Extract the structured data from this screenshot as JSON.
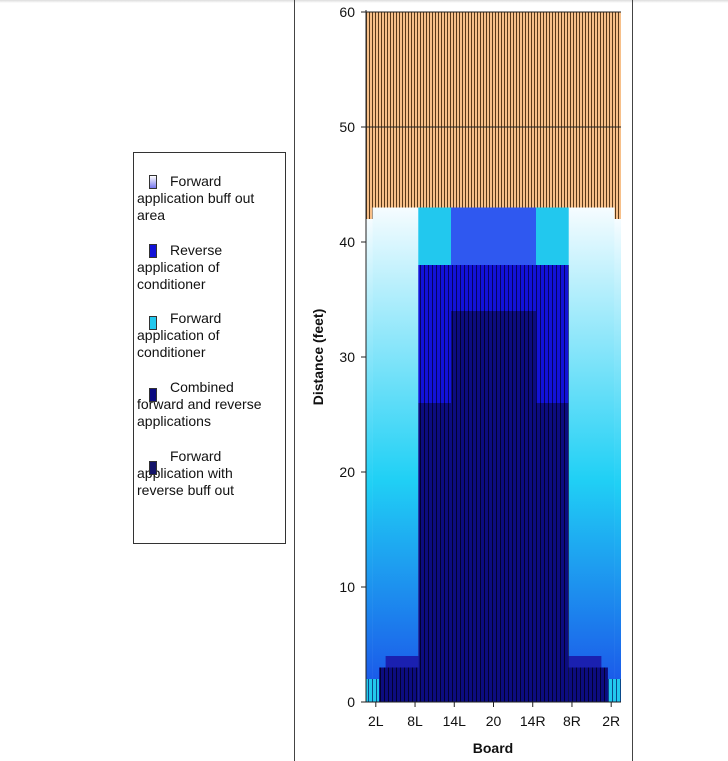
{
  "chart_data": {
    "type": "area",
    "xlabel": "Board",
    "ylabel": "Distance (feet)",
    "ylim": [
      0,
      60
    ],
    "y_ticks": [
      0,
      10,
      20,
      30,
      40,
      50,
      60
    ],
    "x_ticks": [
      "2L",
      "8L",
      "14L",
      "20",
      "14R",
      "8R",
      "2R"
    ],
    "boards": [
      "1L",
      "2L",
      "3L",
      "4L",
      "5L",
      "6L",
      "7L",
      "8L",
      "9L",
      "10L",
      "11L",
      "12L",
      "13L",
      "14L",
      "15L",
      "16L",
      "17L",
      "18L",
      "19L",
      "20",
      "19R",
      "18R",
      "17R",
      "16R",
      "15R",
      "14R",
      "13R",
      "12R",
      "11R",
      "10R",
      "9R",
      "8R",
      "7R",
      "6R",
      "5R",
      "4R",
      "3R",
      "2R",
      "1R"
    ],
    "grid": "horizontal at 50 and 60",
    "legend_position": "left",
    "legend": [
      {
        "label": "Forward application buff out area",
        "color": "#8a8aee"
      },
      {
        "label": "Reverse application of conditioner",
        "color": "#1212d8"
      },
      {
        "label": "Forward application of conditioner",
        "color": "#22c8ee"
      },
      {
        "label": "Combined forward and reverse applications",
        "color": "#0a0a80"
      },
      {
        "label": "Forward application with reverse buff out",
        "color": "#14146a"
      }
    ],
    "regions": {
      "dry_lane": {
        "color": "#f7c08a",
        "outer_from": 42,
        "inner_from": 43,
        "to": 60
      },
      "forward_buff_out": {
        "color_low": "#1a5cf0",
        "color_mid": "#20d0f5",
        "color_high": "#f4fbff",
        "outer_boards": [
          "1L",
          "2L",
          "3L",
          "4L",
          "5L",
          "6L",
          "7L",
          "8L",
          "8R",
          "7R",
          "6R",
          "5R",
          "4R",
          "3R",
          "2R",
          "1R"
        ],
        "to_outer": 42,
        "to_inner": 43
      },
      "forward_conditioner": {
        "color": "#22c8ee",
        "edge_boards": [
          "1L",
          "2L",
          "2R",
          "1R"
        ],
        "edge_to": 2,
        "inner_boards": [
          "9L",
          "10L",
          "11L",
          "12L",
          "13L",
          "13R",
          "12R",
          "11R",
          "10R",
          "9R"
        ],
        "inner_from": 38,
        "inner_to": 43
      },
      "reverse_conditioner": {
        "color_low": "#2f58f0",
        "color_high": "#2f58f0",
        "center_boards": [
          "14L",
          "15L",
          "16L",
          "17L",
          "18L",
          "19L",
          "20",
          "19R",
          "18R",
          "17R",
          "16R",
          "15R",
          "14R"
        ],
        "center_from": 34,
        "center_to": 43,
        "column_color": "#1212d8",
        "column_from": 26,
        "column_to": 38
      },
      "combined": {
        "color": "#0c0c80",
        "side_to": 3,
        "side_boards": [
          "3L",
          "4L",
          "5L",
          "6L",
          "7L",
          "8L",
          "8R",
          "7R",
          "6R",
          "5R",
          "4R",
          "3R"
        ],
        "inner_to": 26,
        "center_to": 34
      }
    }
  }
}
